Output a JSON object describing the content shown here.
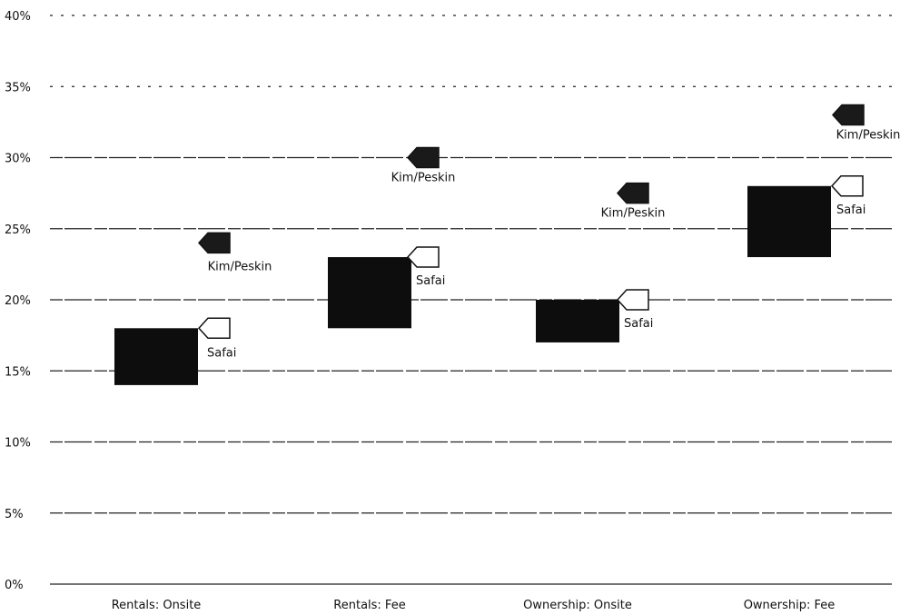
{
  "chart_data": {
    "type": "floating-bar",
    "title": "",
    "xlabel": "",
    "ylabel": "",
    "ylim": [
      0,
      40
    ],
    "y_ticks": [
      "0%",
      "5%",
      "10%",
      "15%",
      "20%",
      "25%",
      "30%",
      "35%",
      "40%"
    ],
    "grid": true,
    "categories": [
      "Rentals: Onsite",
      "Rentals: Fee",
      "Ownership: Onsite",
      "Ownership: Fee"
    ],
    "ranges": [
      {
        "low": 14,
        "high": 18
      },
      {
        "low": 18,
        "high": 23
      },
      {
        "low": 17,
        "high": 20
      },
      {
        "low": 23,
        "high": 28
      }
    ],
    "series": [
      {
        "name": "Kim/Peskin",
        "color": "#1a1a1a",
        "values": [
          24,
          30,
          27.5,
          33
        ]
      },
      {
        "name": "Safai",
        "color": "#ffffff",
        "values": [
          18,
          23,
          20,
          28
        ]
      }
    ]
  }
}
